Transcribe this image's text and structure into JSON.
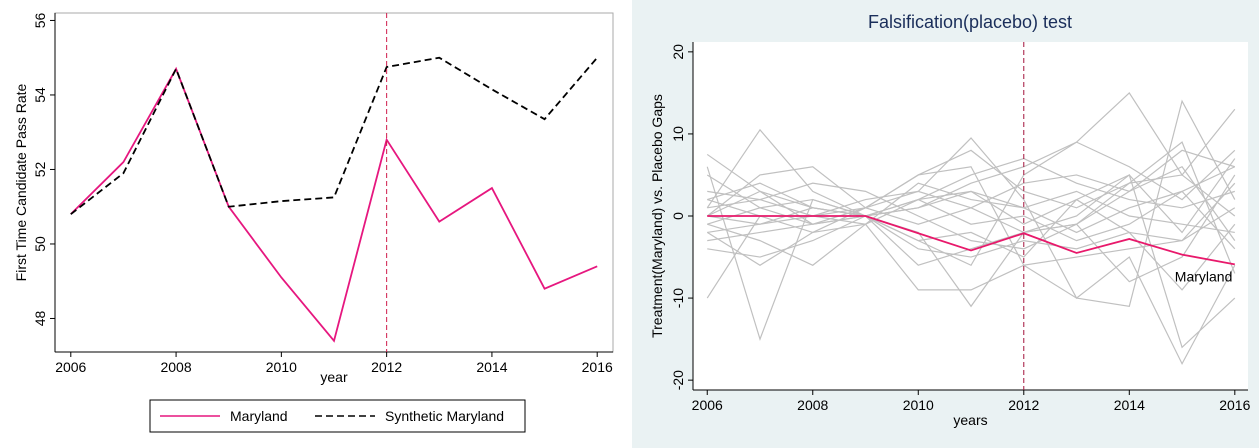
{
  "chart_data": [
    {
      "type": "line",
      "y_label": "First Time Candidate Pass Rate",
      "x_label": "year",
      "x": [
        2006,
        2007,
        2008,
        2009,
        2010,
        2011,
        2012,
        2013,
        2014,
        2015,
        2016
      ],
      "series": [
        {
          "name": "Maryland",
          "color": "#e6177f",
          "dash": "solid",
          "values": [
            50.8,
            52.2,
            54.7,
            51.0,
            49.1,
            47.4,
            52.8,
            50.6,
            51.5,
            48.8,
            49.4
          ]
        },
        {
          "name": "Synthetic Maryland",
          "color": "#000000",
          "dash": "dashed",
          "values": [
            50.8,
            51.9,
            54.7,
            51.0,
            51.15,
            51.25,
            54.75,
            55.0,
            54.15,
            53.35,
            55.0
          ]
        }
      ],
      "xlim": [
        2005.7,
        2016.3
      ],
      "ylim": [
        47.1,
        56.2
      ],
      "xticks": [
        2006,
        2008,
        2010,
        2012,
        2014,
        2016
      ],
      "yticks": [
        48,
        50,
        52,
        54,
        56
      ],
      "vline": {
        "value": 2012,
        "color": "#d01c4b"
      },
      "legend": "bottom",
      "grid": false
    },
    {
      "type": "line",
      "title": "Falsification(placebo) test",
      "y_label": "Treatment(Maryland) vs. Placebo Gaps",
      "x_label": "years",
      "x": [
        2006,
        2007,
        2008,
        2009,
        2010,
        2011,
        2012,
        2013,
        2014,
        2015,
        2016
      ],
      "series": [
        {
          "color": "#c0c0c0",
          "values": [
            7.5,
            3,
            1,
            0,
            2,
            3,
            1,
            -2,
            1,
            3,
            6
          ]
        },
        {
          "color": "#c0c0c0",
          "values": [
            -10,
            0,
            0,
            1,
            3,
            9.5,
            2,
            -10,
            -5,
            -18,
            -6
          ]
        },
        {
          "color": "#c0c0c0",
          "values": [
            6,
            -15,
            2,
            0,
            -2,
            -11,
            -2,
            0,
            5,
            -16,
            -10
          ]
        },
        {
          "color": "#c0c0c0",
          "values": [
            1,
            10.5,
            3,
            0,
            1,
            4,
            6,
            9,
            15,
            5,
            13
          ]
        },
        {
          "color": "#c0c0c0",
          "values": [
            -1,
            -3,
            -6,
            -1,
            -9,
            -9,
            -6,
            -10,
            -11,
            14,
            2
          ]
        },
        {
          "color": "#c0c0c0",
          "values": [
            0,
            5,
            6,
            1,
            5,
            8,
            3,
            1,
            4,
            9,
            -7
          ]
        },
        {
          "color": "#c0c0c0",
          "values": [
            2,
            4,
            1,
            0,
            -3,
            -2,
            -5,
            2,
            5,
            -2,
            7
          ]
        },
        {
          "color": "#c0c0c0",
          "values": [
            -2,
            -6,
            -2,
            1,
            -1,
            1,
            4,
            5,
            3,
            8,
            6
          ]
        },
        {
          "color": "#c0c0c0",
          "values": [
            1,
            2,
            0,
            -1,
            2,
            -1,
            0,
            -3,
            -1,
            3,
            -4
          ]
        },
        {
          "color": "#c0c0c0",
          "values": [
            -3,
            -2,
            -1,
            0,
            1,
            3,
            -1,
            2,
            -2,
            -3,
            1
          ]
        },
        {
          "color": "#c0c0c0",
          "values": [
            3,
            2,
            4,
            3,
            0,
            -3,
            -4,
            -1,
            -8,
            -5,
            5
          ]
        },
        {
          "color": "#c0c0c0",
          "values": [
            0,
            -1,
            1,
            0,
            -4,
            -5,
            -3,
            -4,
            -2,
            -9,
            -1
          ]
        },
        {
          "color": "#c0c0c0",
          "values": [
            -4,
            -5,
            -3,
            0,
            2,
            5,
            7,
            4,
            2,
            1,
            3
          ]
        },
        {
          "color": "#c0c0c0",
          "values": [
            2,
            0,
            -2,
            -1,
            4,
            2,
            1,
            3,
            0,
            -1,
            -2
          ]
        },
        {
          "color": "#c0c0c0",
          "values": [
            5,
            1,
            2,
            0,
            -6,
            -4,
            -2,
            -1,
            3,
            6,
            -3
          ]
        },
        {
          "color": "#c0c0c0",
          "values": [
            -1,
            1,
            -1,
            1,
            5,
            6,
            -6,
            -5,
            -4,
            -3,
            4
          ]
        },
        {
          "color": "#c0c0c0",
          "values": [
            0,
            3,
            -1,
            0,
            -3,
            -6,
            5,
            9,
            6,
            2,
            8
          ]
        },
        {
          "color": "#c0c0c0",
          "values": [
            -2,
            -1,
            0,
            2,
            3,
            1,
            -2,
            -1,
            4,
            5,
            0
          ]
        },
        {
          "name": "Maryland",
          "color": "#e8196b",
          "dash": "solid",
          "values": [
            0,
            0,
            0,
            0,
            -2.1,
            -4.2,
            -2.1,
            -4.5,
            -2.8,
            -4.7,
            -5.9
          ]
        }
      ],
      "xlim": [
        2005.73,
        2016.25
      ],
      "ylim": [
        -21.2,
        21.2
      ],
      "xticks": [
        2006,
        2008,
        2010,
        2012,
        2014,
        2016
      ],
      "yticks": [
        -20,
        -10,
        0,
        10,
        20
      ],
      "vline": {
        "value": 2012,
        "color": "#a3123a"
      },
      "legend": "none",
      "grid": false
    }
  ]
}
